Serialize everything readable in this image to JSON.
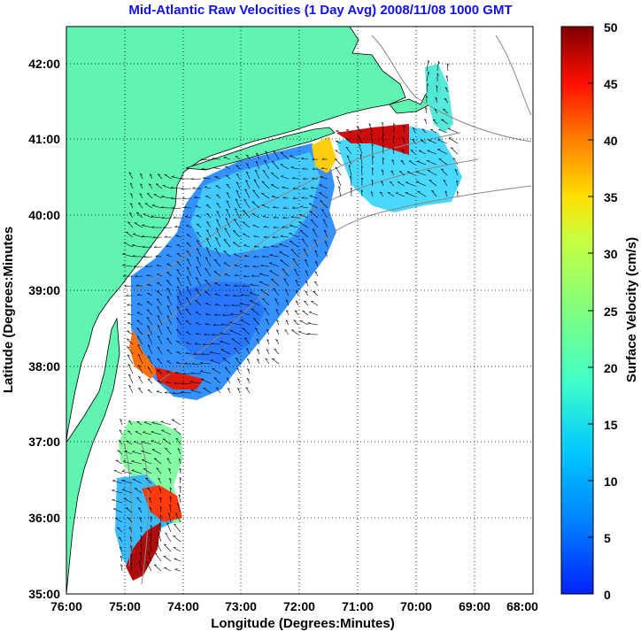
{
  "title": "Mid-Atlantic Raw Velocities (1 Day Avg) 2008/11/08 1000 GMT",
  "map": {
    "xlabel": "Longitude (Degrees:Minutes)",
    "ylabel": "Latitude (Degrees:Minutes",
    "x_ticks": [
      "76:00",
      "75:00",
      "74:00",
      "73:00",
      "72:00",
      "71:00",
      "70:00",
      "69:00",
      "68:00"
    ],
    "y_ticks": [
      "35:00",
      "36:00",
      "37:00",
      "38:00",
      "39:00",
      "40:00",
      "41:00",
      "42:00"
    ],
    "lon_range": [
      -76,
      -68
    ],
    "lat_range": [
      35,
      42.5
    ],
    "land_color": "#5ff5b0",
    "grid": "dotted"
  },
  "colorbar": {
    "label": "Surface Velocity (cm/s)",
    "min": 0,
    "max": 50,
    "ticks": [
      "0",
      "5",
      "10",
      "15",
      "20",
      "25",
      "30",
      "35",
      "40",
      "45",
      "50"
    ],
    "colormap": "jet"
  }
}
